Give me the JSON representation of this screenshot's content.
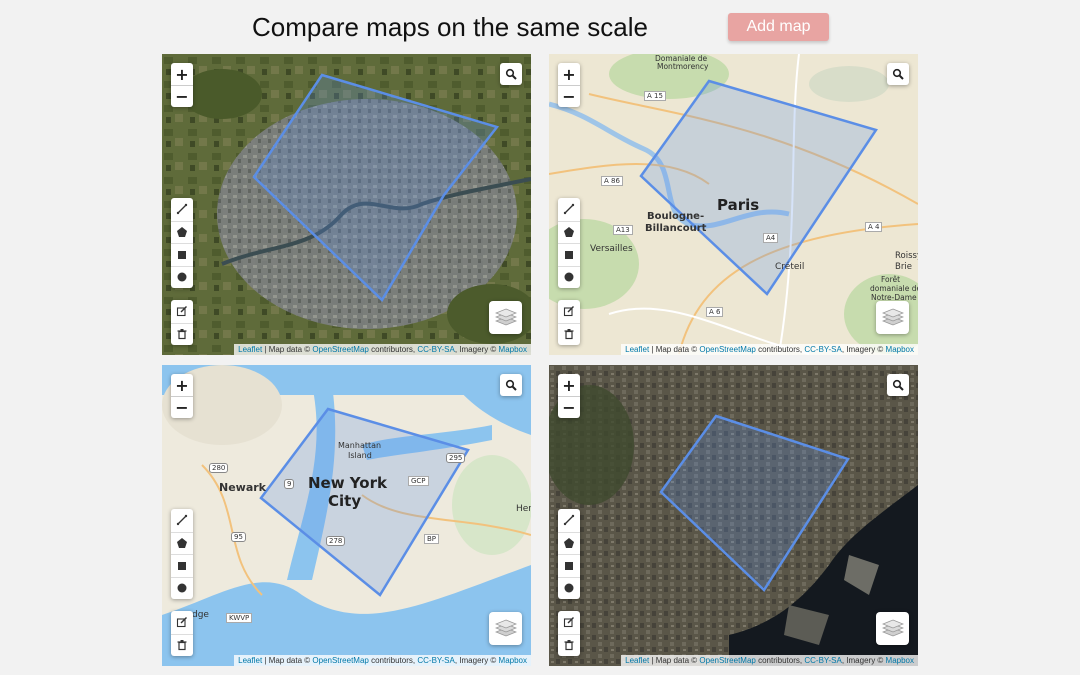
{
  "header": {
    "title": "Compare maps on the same scale",
    "add_map_label": "Add map"
  },
  "controls": {
    "zoom_in": "+",
    "zoom_out": "−"
  },
  "attribution": {
    "leaflet": "Leaflet",
    "sep1": " | Map data © ",
    "osm": "OpenStreetMap",
    "sep2": " contributors, ",
    "license": "CC-BY-SA",
    "sep3": ", Imagery © ",
    "mapbox": "Mapbox"
  },
  "maps": [
    {
      "style": "satellite",
      "labels": []
    },
    {
      "style": "streets",
      "labels": {
        "main": "Paris",
        "boulogne_1": "Boulogne-",
        "boulogne_2": "Billancourt",
        "versailles": "Versailles",
        "creteil": "Créteil",
        "roissy_1": "Roissy-e",
        "roissy_2": "Brie",
        "foret_1": "Forêt",
        "foret_2": "domaniale de",
        "foret_3": "Notre-Dame",
        "montmo_1": "Domaniale de",
        "montmo_2": "Montmorency",
        "a15": "A 15",
        "a86": "A 86",
        "a4": "A 4",
        "a4b": "A4",
        "a6": "A 6",
        "a13": "A13"
      }
    },
    {
      "style": "streets",
      "labels": {
        "main_1": "New York",
        "main_2": "City",
        "newark": "Newark",
        "manhattan_1": "Manhattan",
        "manhattan_2": "Island",
        "gcp": "GCP",
        "bp": "BP",
        "kwvp": "KWVP",
        "her": "Her",
        "bridge": "dge",
        "r280": "280",
        "r95": "95",
        "r278": "278",
        "r295": "295",
        "r9": "9"
      }
    },
    {
      "style": "satellite",
      "labels": []
    }
  ],
  "colors": {
    "polygon_stroke": "#5b8ee6",
    "add_map_bg": "#e8a4a2",
    "link": "#0078a8"
  }
}
